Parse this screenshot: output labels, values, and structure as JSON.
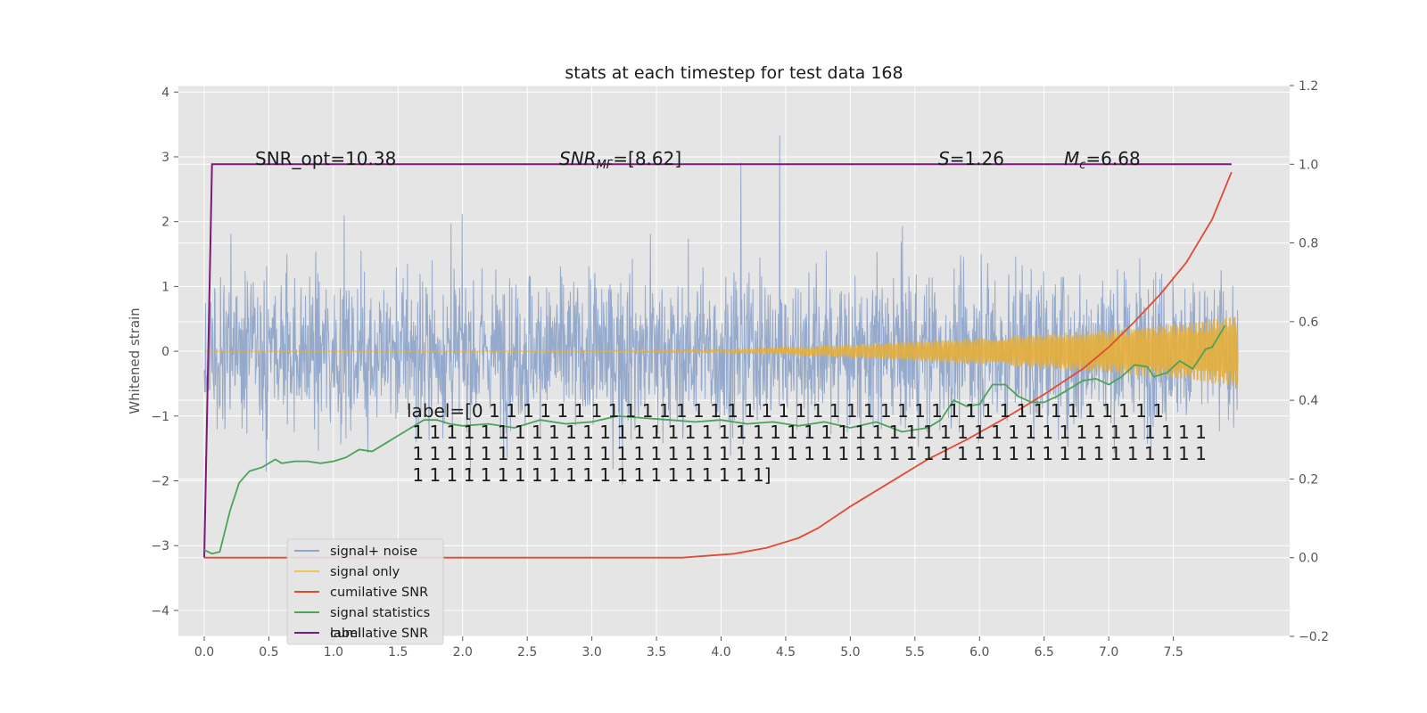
{
  "chart_data": {
    "type": "line",
    "title": "stats at each timestep for test data 168",
    "ylabel": "Whitened strain",
    "xlabel": "",
    "xlim": [
      -0.2,
      8.4
    ],
    "ylim": [
      -4.4,
      4.1
    ],
    "y2lim": [
      -0.2,
      1.2
    ],
    "xticks": [
      "0.0",
      "0.5",
      "1.0",
      "1.5",
      "2.0",
      "2.5",
      "3.0",
      "3.5",
      "4.0",
      "4.5",
      "5.0",
      "5.5",
      "6.0",
      "6.5",
      "7.0",
      "7.5"
    ],
    "yticks": [
      "4",
      "3",
      "2",
      "1",
      "0",
      "−1",
      "−2",
      "−3",
      "−4"
    ],
    "y2ticks": [
      "1.2",
      "1.0",
      "0.8",
      "0.6",
      "0.4",
      "0.2",
      "0.0",
      "−0.2"
    ],
    "grid": true,
    "legend_position": "lower-left",
    "series": [
      {
        "name": "signal+ noise",
        "axis": "left",
        "color": "#8fa5c9",
        "note": "dense noisy strain, roughly ±1.8 amplitude with spikes to ±3.7, t from 0.0 to 8.0",
        "x_range": [
          0.0,
          8.0
        ],
        "envelope": [
          1.8,
          3.7
        ]
      },
      {
        "name": "signal only",
        "axis": "left",
        "color": "#e5ae38",
        "note": "chirp growing from 0 to about ±0.55 at t=8.0",
        "x": [
          0.0,
          2.0,
          4.0,
          5.0,
          6.0,
          7.0,
          7.5,
          8.0
        ],
        "amplitude": [
          0.0,
          0.0,
          0.02,
          0.1,
          0.2,
          0.33,
          0.42,
          0.55
        ]
      },
      {
        "name": "cumilative SNR",
        "axis": "right",
        "color": "#e24a33",
        "x": [
          0.0,
          3.7,
          4.1,
          4.35,
          4.6,
          4.75,
          5.0,
          5.3,
          5.6,
          5.9,
          6.2,
          6.5,
          6.8,
          7.0,
          7.2,
          7.4,
          7.6,
          7.8,
          7.95
        ],
        "y": [
          0.0,
          0.0,
          0.01,
          0.025,
          0.05,
          0.075,
          0.13,
          0.19,
          0.25,
          0.3,
          0.355,
          0.415,
          0.48,
          0.535,
          0.6,
          0.67,
          0.75,
          0.86,
          0.98
        ]
      },
      {
        "name": "signal statistics",
        "axis": "right",
        "color": "#348abd",
        "x": [
          0.0,
          0.06,
          0.12,
          0.2,
          0.27,
          0.35,
          0.45,
          0.55,
          0.6,
          0.7,
          0.8,
          0.9,
          1.0,
          1.1,
          1.2,
          1.3,
          1.4,
          1.5,
          1.6,
          1.7,
          1.8,
          1.9,
          2.0,
          2.2,
          2.4,
          2.6,
          2.8,
          3.0,
          3.2,
          3.4,
          3.6,
          3.8,
          4.0,
          4.2,
          4.4,
          4.6,
          4.8,
          5.0,
          5.2,
          5.4,
          5.6,
          5.7,
          5.8,
          5.9,
          6.0,
          6.1,
          6.2,
          6.3,
          6.4,
          6.5,
          6.6,
          6.7,
          6.8,
          6.9,
          7.0,
          7.1,
          7.2,
          7.3,
          7.35,
          7.45,
          7.55,
          7.65,
          7.75,
          7.8,
          7.9
        ],
        "y": [
          0.02,
          0.01,
          0.015,
          0.12,
          0.19,
          0.22,
          0.23,
          0.25,
          0.24,
          0.245,
          0.245,
          0.24,
          0.245,
          0.255,
          0.275,
          0.27,
          0.29,
          0.31,
          0.33,
          0.35,
          0.35,
          0.34,
          0.335,
          0.34,
          0.33,
          0.35,
          0.34,
          0.345,
          0.36,
          0.355,
          0.35,
          0.345,
          0.35,
          0.34,
          0.345,
          0.335,
          0.345,
          0.33,
          0.345,
          0.32,
          0.33,
          0.35,
          0.4,
          0.385,
          0.39,
          0.44,
          0.44,
          0.41,
          0.395,
          0.395,
          0.41,
          0.43,
          0.45,
          0.455,
          0.44,
          0.46,
          0.49,
          0.485,
          0.46,
          0.47,
          0.5,
          0.48,
          0.53,
          0.535,
          0.59
        ]
      },
      {
        "name": "label",
        "axis": "right",
        "color": "#7a1a7a",
        "x": [
          0.0,
          0.06,
          7.95
        ],
        "y": [
          0.0,
          1.0,
          1.0
        ]
      }
    ],
    "annotations": [
      {
        "text": "SNR_opt=10.38"
      },
      {
        "text": "SNR_MF=[8.62]"
      },
      {
        "text": "S=1.26"
      },
      {
        "text": "M_c=6.68"
      },
      {
        "lines": [
          "label=[0 1 1 1 1 1 1 1 1 1 1 1 1 1 1 1 1 1 1 1 1 1 1 1 1 1 1 1 1 1 1 1 1 1 1 1 1 1 1 1 1",
          " 1 1 1 1 1 1 1 1 1 1 1 1 1 1 1 1 1 1 1 1 1 1 1 1 1 1 1 1 1 1 1 1 1 1 1 1 1 1 1 1 1 1 1 1 1 1 1",
          " 1 1 1 1 1 1 1 1 1 1 1 1 1 1 1 1 1 1 1 1 1 1 1 1 1 1 1 1 1 1 1 1 1 1 1 1 1 1 1 1 1 1 1 1 1 1 1",
          " 1 1 1 1 1 1 1 1 1 1 1 1 1 1 1 1 1 1 1 1 1]"
        ]
      }
    ],
    "legend": [
      "signal+ noise",
      "signal only",
      "cumilative SNR",
      "signal statistics",
      "label"
    ],
    "legend_ghost_text": "cumilative SNR"
  }
}
